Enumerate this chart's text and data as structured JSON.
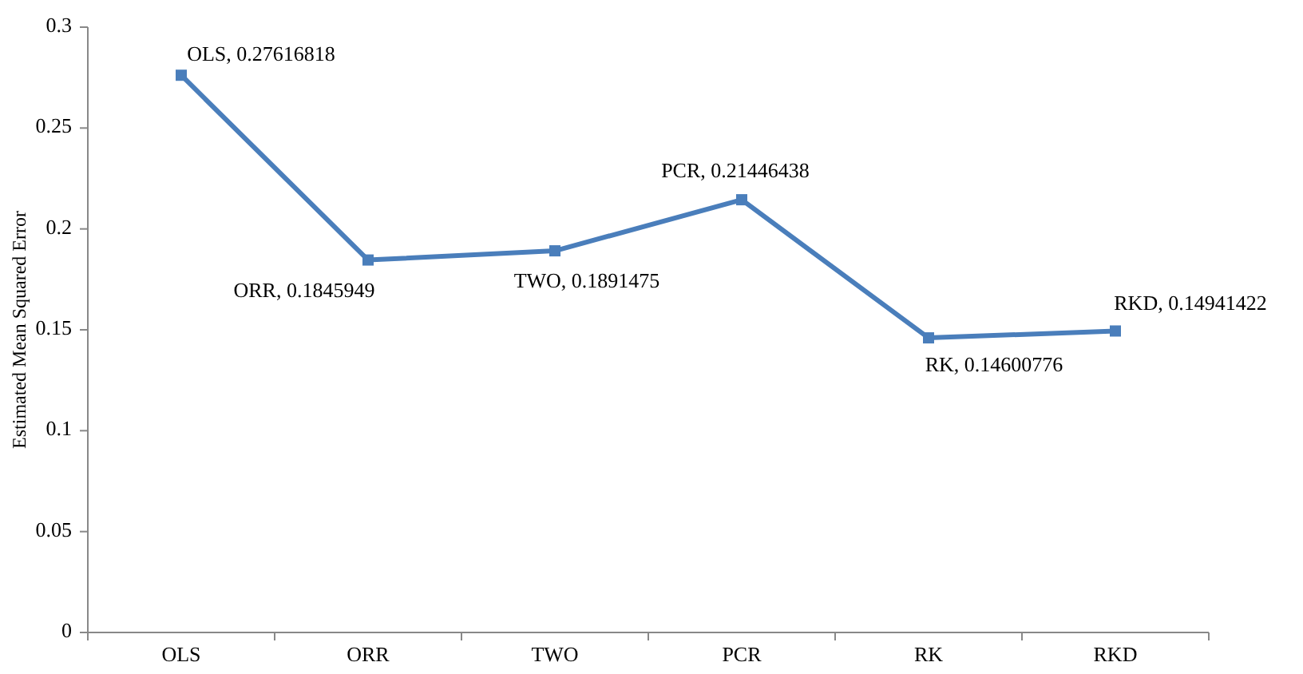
{
  "chart_data": {
    "type": "line",
    "ylabel": "Estimated Mean Squared Error",
    "categories": [
      "OLS",
      "ORR",
      "TWO",
      "PCR",
      "RK",
      "RKD"
    ],
    "series": [
      {
        "color": "#4a7ebb",
        "values": [
          0.27616818,
          0.1845949,
          0.1891475,
          0.21446438,
          0.14600776,
          0.14941422
        ],
        "value_labels": [
          "OLS, 0.27616818",
          "ORR, 0.1845949",
          "TWO, 0.1891475",
          "PCR, 0.21446438",
          "RK, 0.14600776",
          "RKD, 0.14941422"
        ]
      }
    ],
    "ylim": [
      0,
      0.3
    ],
    "yticks": [
      0,
      0.05,
      0.1,
      0.15,
      0.2,
      0.25,
      0.3
    ],
    "grid": false,
    "marker": "square",
    "line_style": "solid"
  }
}
